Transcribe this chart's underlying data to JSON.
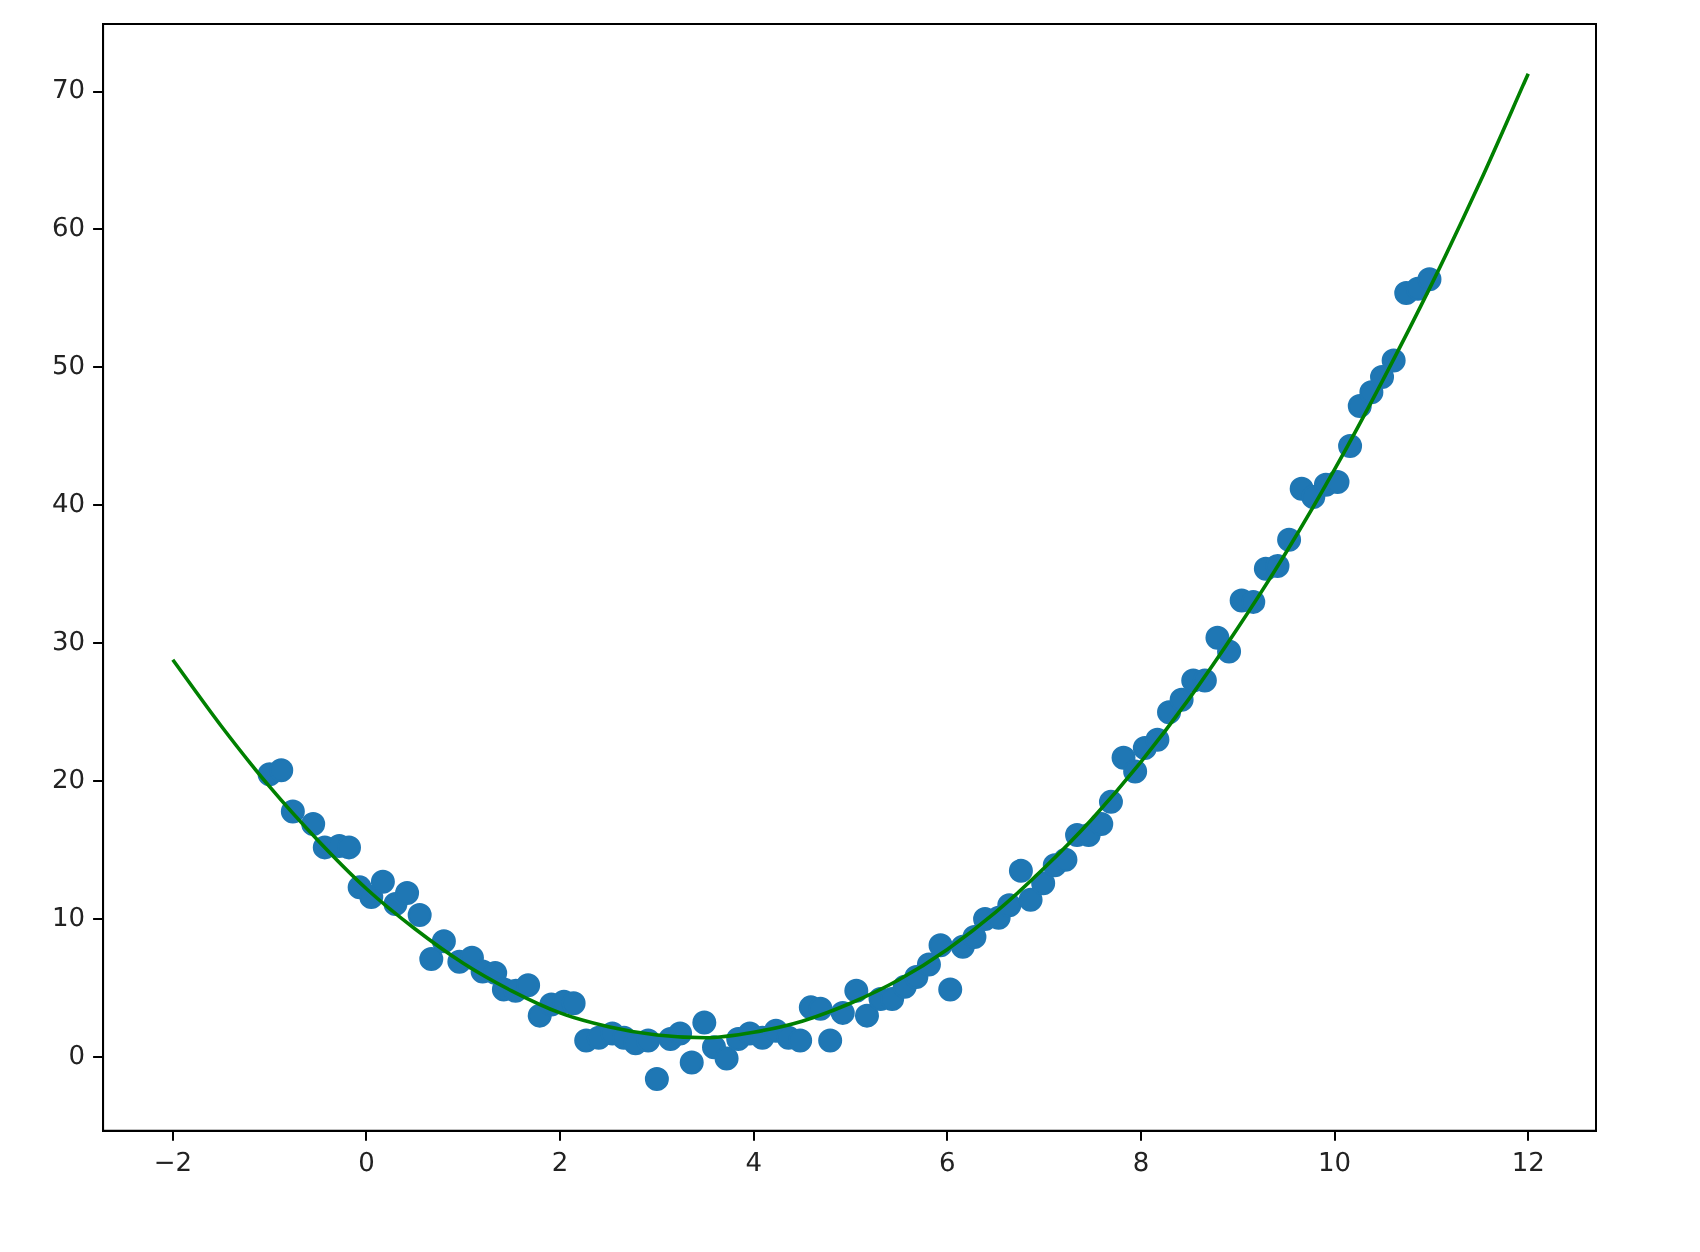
{
  "chart_data": {
    "type": "scatter",
    "xlim": [
      -2.72,
      12.7
    ],
    "ylim": [
      -5.35,
      74.9
    ],
    "xticks": [
      -2,
      0,
      2,
      4,
      6,
      8,
      10,
      12
    ],
    "yticks": [
      0,
      10,
      20,
      30,
      40,
      50,
      60,
      70
    ],
    "grid": false,
    "legend": false,
    "marker": "circle",
    "series": [
      {
        "type": "scatter",
        "color": "#1f77b4",
        "x": [
          -1.0,
          -0.88,
          -0.76,
          -0.55,
          -0.43,
          -0.28,
          -0.18,
          -0.07,
          0.05,
          0.17,
          0.3,
          0.42,
          0.55,
          0.67,
          0.8,
          0.96,
          1.09,
          1.2,
          1.33,
          1.42,
          1.54,
          1.67,
          1.79,
          1.91,
          2.04,
          2.14,
          2.27,
          2.4,
          2.54,
          2.66,
          2.78,
          2.91,
          3.0,
          3.14,
          3.24,
          3.36,
          3.49,
          3.59,
          3.72,
          3.84,
          3.96,
          4.09,
          4.23,
          4.36,
          4.48,
          4.59,
          4.69,
          4.79,
          4.92,
          5.06,
          5.17,
          5.31,
          5.43,
          5.56,
          5.68,
          5.81,
          5.93,
          6.03,
          6.16,
          6.28,
          6.39,
          6.53,
          6.64,
          6.76,
          6.86,
          6.99,
          7.11,
          7.22,
          7.34,
          7.46,
          7.59,
          7.69,
          7.82,
          7.94,
          8.04,
          8.17,
          8.29,
          8.42,
          8.54,
          8.66,
          8.79,
          8.91,
          9.04,
          9.16,
          9.29,
          9.41,
          9.53,
          9.66,
          9.78,
          9.91,
          10.03,
          10.16,
          10.26,
          10.38,
          10.49,
          10.61,
          10.74,
          10.86,
          10.98
        ],
        "values": [
          20.5,
          20.8,
          17.8,
          16.9,
          15.2,
          15.3,
          15.2,
          12.3,
          11.6,
          12.7,
          11.1,
          11.9,
          10.3,
          7.1,
          8.4,
          6.9,
          7.2,
          6.2,
          6.1,
          4.9,
          4.8,
          5.2,
          3.0,
          3.8,
          4.0,
          3.9,
          1.2,
          1.4,
          1.7,
          1.4,
          1.0,
          1.2,
          -1.6,
          1.3,
          1.7,
          -0.4,
          2.5,
          0.7,
          -0.1,
          1.3,
          1.7,
          1.4,
          1.9,
          1.4,
          1.2,
          3.6,
          3.5,
          1.2,
          3.2,
          4.8,
          3.0,
          4.2,
          4.2,
          5.1,
          5.8,
          6.7,
          8.1,
          4.9,
          8.0,
          8.7,
          10.0,
          10.1,
          11.0,
          13.5,
          11.4,
          12.6,
          13.9,
          14.3,
          16.1,
          16.1,
          16.9,
          18.5,
          21.7,
          20.7,
          22.4,
          23.0,
          25.0,
          25.9,
          27.3,
          27.3,
          30.4,
          29.4,
          33.1,
          33.0,
          35.4,
          35.6,
          37.5,
          41.2,
          40.6,
          41.5,
          41.7,
          44.3,
          47.2,
          48.2,
          49.3,
          50.5,
          55.4,
          55.7,
          56.4
        ]
      },
      {
        "type": "line",
        "color": "#008000",
        "marker": "none",
        "line_style": "solid",
        "x": [
          -2,
          -1.5,
          -1,
          -0.5,
          0,
          0.5,
          1,
          1.5,
          2,
          2.5,
          3,
          3.5,
          4,
          4.5,
          5,
          5.5,
          6,
          6.5,
          7,
          7.5,
          8,
          8.5,
          9,
          9.5,
          10,
          10.5,
          11,
          11.5,
          12
        ],
        "values": [
          28.8,
          24.0,
          19.6,
          15.7,
          12.2,
          9.3,
          6.8,
          4.8,
          3.2,
          2.2,
          1.6,
          1.4,
          1.8,
          2.6,
          3.9,
          5.6,
          7.8,
          10.5,
          13.7,
          17.3,
          21.4,
          26.0,
          31.1,
          36.6,
          42.6,
          49.1,
          56.0,
          63.4,
          71.3
        ]
      }
    ]
  }
}
